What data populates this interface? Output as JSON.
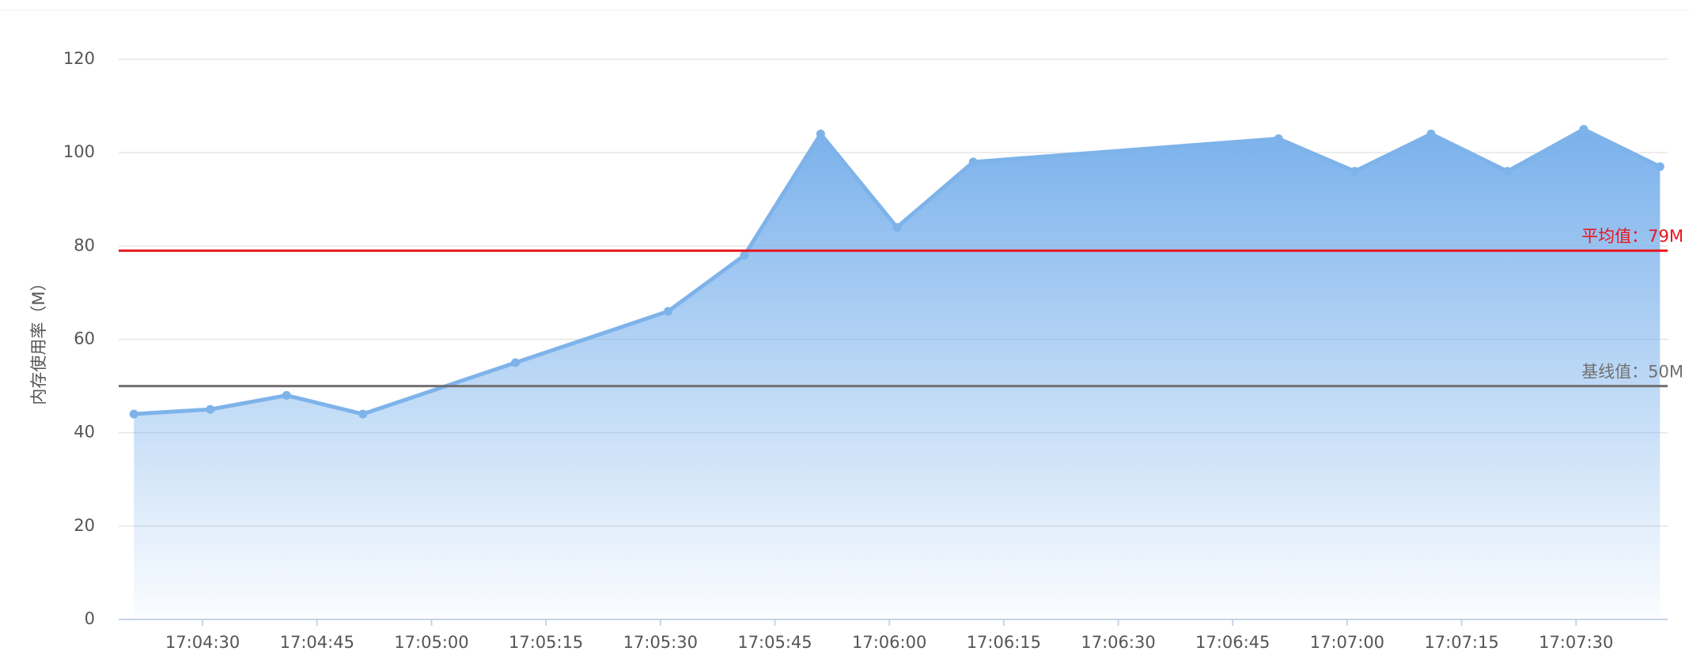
{
  "chart_data": {
    "type": "area",
    "y_axis_label": "内存使用率（M）",
    "x": [
      "17:04:21",
      "17:04:31",
      "17:04:41",
      "17:04:51",
      "17:05:11",
      "17:05:31",
      "17:05:41",
      "17:05:51",
      "17:06:01",
      "17:06:11",
      "17:06:51",
      "17:07:01",
      "17:07:11",
      "17:07:21",
      "17:07:31",
      "17:07:41"
    ],
    "series": [
      {
        "color": "#7eb3ea",
        "values": [
          44,
          45,
          48,
          44,
          55,
          66,
          78,
          104,
          84,
          98,
          103,
          96,
          104,
          96,
          105,
          97
        ]
      }
    ],
    "xlim": [
      "17:04:19",
      "17:07:42"
    ],
    "xticks": [
      "17:04:30",
      "17:04:45",
      "17:05:00",
      "17:05:15",
      "17:05:30",
      "17:05:45",
      "17:06:00",
      "17:06:15",
      "17:06:30",
      "17:06:45",
      "17:07:00",
      "17:07:15",
      "17:07:30"
    ],
    "ylim": [
      0,
      120
    ],
    "yticks": [
      0,
      20,
      40,
      60,
      80,
      100,
      120
    ],
    "grid": true,
    "reference_lines": [
      {
        "value": 79,
        "label": "平均值：79M",
        "color": "#e8141c"
      },
      {
        "value": 50,
        "label": "基线值：50M",
        "color": "#707070"
      }
    ]
  }
}
